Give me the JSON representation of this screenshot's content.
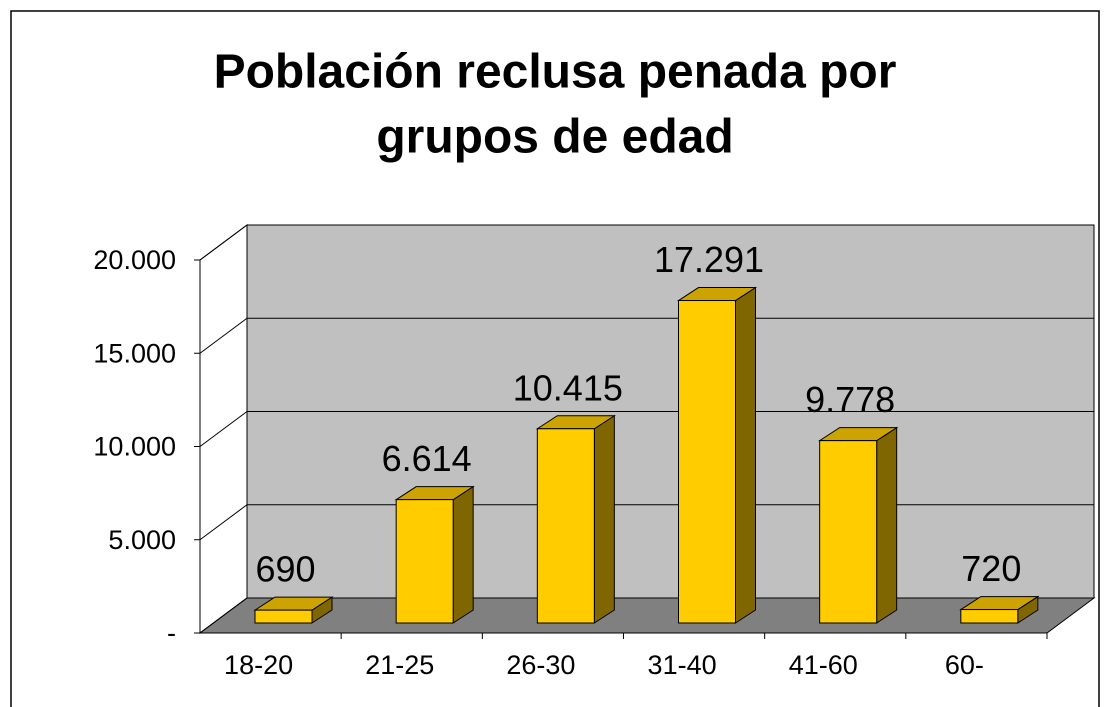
{
  "chart_data": {
    "type": "bar3d",
    "title": [
      "Población reclusa penada por",
      "grupos de edad"
    ],
    "categories": [
      "18-20",
      "21-25",
      "26-30",
      "31-40",
      "41-60",
      "60-"
    ],
    "values": [
      690,
      6614,
      10415,
      17291,
      9778,
      720
    ],
    "value_labels": [
      "690",
      "6.614",
      "10.415",
      "17.291",
      "9.778",
      "720"
    ],
    "color": "#ffcc00",
    "ylim": [
      0,
      20000
    ],
    "yticks": [
      {
        "value": 0,
        "label": "-"
      },
      {
        "value": 5000,
        "label": "5.000"
      },
      {
        "value": 10000,
        "label": "10.000"
      },
      {
        "value": 15000,
        "label": "15.000"
      },
      {
        "value": 20000,
        "label": "20.000"
      }
    ],
    "grid": true
  }
}
